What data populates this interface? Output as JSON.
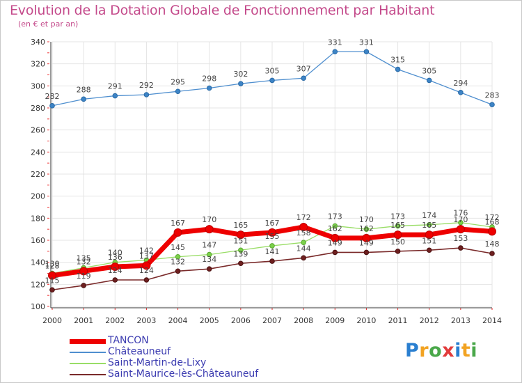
{
  "header": {
    "title": "Evolution de la Dotation Globale de Fonctionnement par Habitant",
    "subtitle": "(en € et par an)"
  },
  "logo": {
    "letters": [
      "P",
      "r",
      "o",
      "x",
      "i",
      "t",
      "i"
    ],
    "colors": [
      "#2a7fd0",
      "#f2a322",
      "#4aa84a",
      "#e23b3b",
      "#2a7fd0",
      "#f2a322",
      "#4aa84a"
    ]
  },
  "chart_data": {
    "type": "line",
    "x": [
      "2000",
      "2001",
      "2002",
      "2003",
      "2004",
      "2005",
      "2006",
      "2007",
      "2008",
      "2009",
      "2010",
      "2011",
      "2012",
      "2013",
      "2014"
    ],
    "ylim": [
      100,
      340
    ],
    "yticks": [
      100,
      120,
      140,
      160,
      180,
      200,
      220,
      240,
      260,
      280,
      300,
      320,
      340
    ],
    "grid": true,
    "legend_position": "bottom-left",
    "series": [
      {
        "name": "TANCON",
        "color": "#ee0000",
        "values": [
          128,
          132,
          136,
          137,
          167,
          170,
          165,
          167,
          172,
          162,
          162,
          165,
          165,
          170,
          168
        ],
        "labels": [
          "128",
          "132",
          "136",
          "137",
          "167",
          "170",
          "165",
          "167",
          "172",
          "162",
          "162",
          "165",
          "165",
          "170",
          "168"
        ]
      },
      {
        "name": "Châteauneuf",
        "color": "#4f8fcf",
        "values": [
          282,
          288,
          291,
          292,
          295,
          298,
          302,
          305,
          307,
          331,
          331,
          315,
          305,
          294,
          283
        ],
        "labels": [
          "282",
          "288",
          "291",
          "292",
          "295",
          "298",
          "302",
          "305",
          "307",
          "331",
          "331",
          "315",
          "305",
          "294",
          "283"
        ]
      },
      {
        "name": "Saint-Martin-de-Lixy",
        "color": "#99dd66",
        "values": [
          130,
          135,
          140,
          142,
          145,
          147,
          151,
          155,
          158,
          173,
          170,
          173,
          174,
          176,
          172
        ],
        "labels": [
          "130",
          "135",
          "140",
          "142",
          "145",
          "147",
          "151",
          "155",
          "158",
          "173",
          "170",
          "173",
          "174",
          "176",
          "172"
        ]
      },
      {
        "name": "Saint-Maurice-lès-Châteauneuf",
        "color": "#7a2a2a",
        "values": [
          115,
          119,
          124,
          124,
          132,
          134,
          139,
          141,
          144,
          149,
          149,
          150,
          151,
          153,
          148
        ],
        "labels": [
          "115",
          "119",
          "124",
          "124",
          "132",
          "134",
          "139",
          "141",
          "144",
          "149",
          "149",
          "150",
          "151",
          "153",
          "148"
        ]
      }
    ]
  }
}
